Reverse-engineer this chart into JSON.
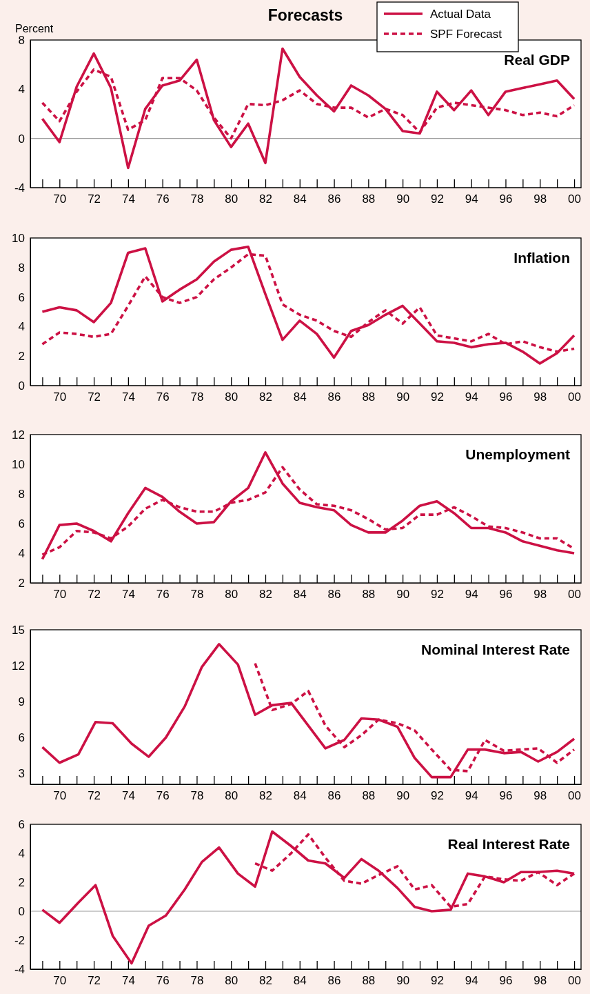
{
  "chart_data": [
    {
      "type": "line",
      "title": "Real GDP",
      "ylabel": "Percent",
      "annotations": [
        "Forecasts"
      ],
      "legend": "top right",
      "marker": "none",
      "grid": false,
      "x": [
        1969,
        1970,
        1971,
        1972,
        1973,
        1974,
        1975,
        1976,
        1977,
        1978,
        1979,
        1980,
        1981,
        1982,
        1983,
        1984,
        1985,
        1986,
        1987,
        1988,
        1989,
        1990,
        1991,
        1992,
        1993,
        1994,
        1995,
        1996,
        1997,
        1998,
        1999,
        2000
      ],
      "xlim": [
        1968.3,
        2000.4
      ],
      "xticks": [
        {
          "value": 1969,
          "label": null
        },
        {
          "value": 1970,
          "label": "70"
        },
        {
          "value": 1971,
          "label": null
        },
        {
          "value": 1972,
          "label": "72"
        },
        {
          "value": 1973,
          "label": null
        },
        {
          "value": 1974,
          "label": "74"
        },
        {
          "value": 1975,
          "label": null
        },
        {
          "value": 1976,
          "label": "76"
        },
        {
          "value": 1977,
          "label": null
        },
        {
          "value": 1978,
          "label": "78"
        },
        {
          "value": 1979,
          "label": null
        },
        {
          "value": 1980,
          "label": "80"
        },
        {
          "value": 1981,
          "label": null
        },
        {
          "value": 1982,
          "label": "82"
        },
        {
          "value": 1983,
          "label": null
        },
        {
          "value": 1984,
          "label": "84"
        },
        {
          "value": 1985,
          "label": null
        },
        {
          "value": 1986,
          "label": "86"
        },
        {
          "value": 1987,
          "label": null
        },
        {
          "value": 1988,
          "label": "88"
        },
        {
          "value": 1989,
          "label": null
        },
        {
          "value": 1990,
          "label": "90"
        },
        {
          "value": 1991,
          "label": null
        },
        {
          "value": 1992,
          "label": "92"
        },
        {
          "value": 1993,
          "label": null
        },
        {
          "value": 1994,
          "label": "94"
        },
        {
          "value": 1995,
          "label": null
        },
        {
          "value": 1996,
          "label": "96"
        },
        {
          "value": 1997,
          "label": null
        },
        {
          "value": 1998,
          "label": "98"
        },
        {
          "value": 1999,
          "label": null
        },
        {
          "value": 2000,
          "label": "00"
        }
      ],
      "ylim": [
        -4,
        8
      ],
      "yticks": [
        -4,
        0,
        4,
        8
      ],
      "ref_lines": [
        {
          "axis": "y",
          "value": 0,
          "color": "#999999"
        }
      ],
      "series": [
        {
          "name": "Actual Data",
          "color": "#cc1144",
          "line_style": "solid",
          "values": [
            1.6,
            -0.3,
            4.2,
            6.9,
            4.1,
            -2.4,
            2.4,
            4.3,
            4.7,
            6.4,
            1.5,
            -0.7,
            1.2,
            -2.0,
            7.3,
            5.0,
            3.5,
            2.2,
            4.3,
            3.5,
            2.4,
            0.6,
            0.4,
            3.8,
            2.3,
            3.9,
            1.9,
            3.8,
            4.1,
            4.4,
            4.7,
            3.2
          ]
        },
        {
          "name": "SPF Forecast",
          "color": "#cc1144",
          "line_style": "dashed",
          "values": [
            2.9,
            1.4,
            3.8,
            5.6,
            5.0,
            0.7,
            1.5,
            4.9,
            4.9,
            3.9,
            1.7,
            0.0,
            2.8,
            2.7,
            3.1,
            3.9,
            2.8,
            2.5,
            2.5,
            1.7,
            2.4,
            1.9,
            0.5,
            2.5,
            2.9,
            2.7,
            2.5,
            2.3,
            1.9,
            2.1,
            1.8,
            2.7
          ]
        }
      ]
    },
    {
      "type": "line",
      "title": "Inflation",
      "marker": "none",
      "grid": false,
      "x": [
        1969,
        1970,
        1971,
        1972,
        1973,
        1974,
        1975,
        1976,
        1977,
        1978,
        1979,
        1980,
        1981,
        1982,
        1983,
        1984,
        1985,
        1986,
        1987,
        1988,
        1989,
        1990,
        1991,
        1992,
        1993,
        1994,
        1995,
        1996,
        1997,
        1998,
        1999,
        2000
      ],
      "xlim": [
        1968.3,
        2000.4
      ],
      "xticks": [
        {
          "value": 1969,
          "label": null
        },
        {
          "value": 1970,
          "label": "70"
        },
        {
          "value": 1971,
          "label": null
        },
        {
          "value": 1972,
          "label": "72"
        },
        {
          "value": 1973,
          "label": null
        },
        {
          "value": 1974,
          "label": "74"
        },
        {
          "value": 1975,
          "label": null
        },
        {
          "value": 1976,
          "label": "76"
        },
        {
          "value": 1977,
          "label": null
        },
        {
          "value": 1978,
          "label": "78"
        },
        {
          "value": 1979,
          "label": null
        },
        {
          "value": 1980,
          "label": "80"
        },
        {
          "value": 1981,
          "label": null
        },
        {
          "value": 1982,
          "label": "82"
        },
        {
          "value": 1983,
          "label": null
        },
        {
          "value": 1984,
          "label": "84"
        },
        {
          "value": 1985,
          "label": null
        },
        {
          "value": 1986,
          "label": "86"
        },
        {
          "value": 1987,
          "label": null
        },
        {
          "value": 1988,
          "label": "88"
        },
        {
          "value": 1989,
          "label": null
        },
        {
          "value": 1990,
          "label": "90"
        },
        {
          "value": 1991,
          "label": null
        },
        {
          "value": 1992,
          "label": "92"
        },
        {
          "value": 1993,
          "label": null
        },
        {
          "value": 1994,
          "label": "94"
        },
        {
          "value": 1995,
          "label": null
        },
        {
          "value": 1996,
          "label": "96"
        },
        {
          "value": 1997,
          "label": null
        },
        {
          "value": 1998,
          "label": "98"
        },
        {
          "value": 1999,
          "label": null
        },
        {
          "value": 2000,
          "label": "00"
        }
      ],
      "ylim": [
        0,
        10
      ],
      "yticks": [
        0,
        2,
        4,
        6,
        8,
        10
      ],
      "series": [
        {
          "color": "#cc1144",
          "line_style": "solid",
          "values": [
            5.0,
            5.3,
            5.1,
            4.3,
            5.6,
            9.0,
            9.3,
            5.7,
            6.5,
            7.2,
            8.4,
            9.2,
            9.4,
            6.2,
            3.1,
            4.4,
            3.5,
            1.9,
            3.7,
            4.1,
            4.8,
            5.4,
            4.2,
            3.0,
            2.9,
            2.6,
            2.8,
            2.9,
            2.3,
            1.5,
            2.2,
            3.4
          ]
        },
        {
          "color": "#cc1144",
          "line_style": "dashed",
          "values": [
            2.8,
            3.6,
            3.5,
            3.3,
            3.5,
            5.4,
            7.4,
            6.0,
            5.6,
            6.0,
            7.2,
            8.0,
            8.9,
            8.8,
            5.5,
            4.8,
            4.4,
            3.7,
            3.3,
            4.3,
            5.1,
            4.2,
            5.3,
            3.4,
            3.2,
            3.0,
            3.5,
            2.8,
            3.0,
            2.6,
            2.3,
            2.5
          ]
        }
      ]
    },
    {
      "type": "line",
      "title": "Unemployment",
      "marker": "none",
      "grid": false,
      "x": [
        1969,
        1970,
        1971,
        1972,
        1973,
        1974,
        1975,
        1976,
        1977,
        1978,
        1979,
        1980,
        1981,
        1982,
        1983,
        1984,
        1985,
        1986,
        1987,
        1988,
        1989,
        1990,
        1991,
        1992,
        1993,
        1994,
        1995,
        1996,
        1997,
        1998,
        1999,
        2000
      ],
      "xlim": [
        1968.3,
        2000.4
      ],
      "xticks": [
        {
          "value": 1969,
          "label": null
        },
        {
          "value": 1970,
          "label": "70"
        },
        {
          "value": 1971,
          "label": null
        },
        {
          "value": 1972,
          "label": "72"
        },
        {
          "value": 1973,
          "label": null
        },
        {
          "value": 1974,
          "label": "74"
        },
        {
          "value": 1975,
          "label": null
        },
        {
          "value": 1976,
          "label": "76"
        },
        {
          "value": 1977,
          "label": null
        },
        {
          "value": 1978,
          "label": "78"
        },
        {
          "value": 1979,
          "label": null
        },
        {
          "value": 1980,
          "label": "80"
        },
        {
          "value": 1981,
          "label": null
        },
        {
          "value": 1982,
          "label": "82"
        },
        {
          "value": 1983,
          "label": null
        },
        {
          "value": 1984,
          "label": "84"
        },
        {
          "value": 1985,
          "label": null
        },
        {
          "value": 1986,
          "label": "86"
        },
        {
          "value": 1987,
          "label": null
        },
        {
          "value": 1988,
          "label": "88"
        },
        {
          "value": 1989,
          "label": null
        },
        {
          "value": 1990,
          "label": "90"
        },
        {
          "value": 1991,
          "label": null
        },
        {
          "value": 1992,
          "label": "92"
        },
        {
          "value": 1993,
          "label": null
        },
        {
          "value": 1994,
          "label": "94"
        },
        {
          "value": 1995,
          "label": null
        },
        {
          "value": 1996,
          "label": "96"
        },
        {
          "value": 1997,
          "label": null
        },
        {
          "value": 1998,
          "label": "98"
        },
        {
          "value": 1999,
          "label": null
        },
        {
          "value": 2000,
          "label": "00"
        }
      ],
      "ylim": [
        2,
        12
      ],
      "yticks": [
        2,
        4,
        6,
        8,
        10,
        12
      ],
      "series": [
        {
          "color": "#cc1144",
          "line_style": "solid",
          "values": [
            3.6,
            5.9,
            6.0,
            5.5,
            4.8,
            6.7,
            8.4,
            7.8,
            6.8,
            6.0,
            6.1,
            7.5,
            8.4,
            10.8,
            8.7,
            7.4,
            7.1,
            6.9,
            5.9,
            5.4,
            5.4,
            6.2,
            7.2,
            7.5,
            6.7,
            5.7,
            5.7,
            5.4,
            4.8,
            4.5,
            4.2,
            4.0
          ]
        },
        {
          "color": "#cc1144",
          "line_style": "dashed",
          "values": [
            3.9,
            4.4,
            5.5,
            5.4,
            5.0,
            5.8,
            7.0,
            7.6,
            7.1,
            6.8,
            6.8,
            7.4,
            7.6,
            8.1,
            9.8,
            8.3,
            7.3,
            7.2,
            6.9,
            6.3,
            5.6,
            5.7,
            6.6,
            6.6,
            7.1,
            6.5,
            5.8,
            5.7,
            5.4,
            5.0,
            5.0,
            4.3
          ]
        }
      ]
    },
    {
      "type": "line",
      "title": "Nominal Interest Rate",
      "marker": "none",
      "grid": false,
      "xlim": [
        1968.3,
        2000.4
      ],
      "xticks": [
        {
          "value": 1969,
          "label": null
        },
        {
          "value": 1970,
          "label": "70"
        },
        {
          "value": 1971,
          "label": null
        },
        {
          "value": 1972,
          "label": "72"
        },
        {
          "value": 1973,
          "label": null
        },
        {
          "value": 1974,
          "label": "74"
        },
        {
          "value": 1975,
          "label": null
        },
        {
          "value": 1976,
          "label": "76"
        },
        {
          "value": 1977,
          "label": null
        },
        {
          "value": 1978,
          "label": "78"
        },
        {
          "value": 1979,
          "label": null
        },
        {
          "value": 1980,
          "label": "80"
        },
        {
          "value": 1981,
          "label": null
        },
        {
          "value": 1982,
          "label": "82"
        },
        {
          "value": 1983,
          "label": null
        },
        {
          "value": 1984,
          "label": "84"
        },
        {
          "value": 1985,
          "label": null
        },
        {
          "value": 1986,
          "label": "86"
        },
        {
          "value": 1987,
          "label": null
        },
        {
          "value": 1988,
          "label": "88"
        },
        {
          "value": 1989,
          "label": null
        },
        {
          "value": 1990,
          "label": "90"
        },
        {
          "value": 1991,
          "label": null
        },
        {
          "value": 1992,
          "label": "92"
        },
        {
          "value": 1993,
          "label": null
        },
        {
          "value": 1994,
          "label": "94"
        },
        {
          "value": 1995,
          "label": null
        },
        {
          "value": 1996,
          "label": "96"
        },
        {
          "value": 1997,
          "label": null
        },
        {
          "value": 1998,
          "label": "98"
        },
        {
          "value": 1999,
          "label": null
        },
        {
          "value": 2000,
          "label": "00"
        }
      ],
      "ylim": [
        2.1,
        15
      ],
      "yticks": [
        3,
        6,
        9,
        12,
        15
      ],
      "series": [
        {
          "color": "#cc1144",
          "line_style": "solid",
          "x": [
            1969.0,
            1970.0,
            1971.1,
            1972.1,
            1973.1,
            1974.2,
            1975.2,
            1976.2,
            1977.3,
            1978.3,
            1979.3,
            1980.4,
            1981.4,
            1982.4,
            1983.5,
            1984.5,
            1985.5,
            1986.6,
            1987.6,
            1988.6,
            1989.7,
            1990.7,
            1991.7,
            1992.8,
            1993.8,
            1994.8,
            1995.9,
            1996.9,
            1997.9,
            1999.0,
            2000.0
          ],
          "values": [
            5.2,
            3.9,
            4.6,
            7.3,
            7.2,
            5.5,
            4.4,
            6.0,
            8.6,
            11.9,
            13.8,
            12.1,
            7.9,
            8.7,
            8.9,
            7.0,
            5.1,
            5.8,
            7.6,
            7.5,
            6.9,
            4.3,
            2.7,
            2.7,
            5.0,
            5.0,
            4.7,
            4.8,
            4.0,
            4.8,
            5.9
          ]
        },
        {
          "color": "#cc1144",
          "line_style": "dashed",
          "x": [
            1981.4,
            1982.4,
            1983.5,
            1984.5,
            1985.5,
            1986.6,
            1987.6,
            1988.6,
            1989.7,
            1990.7,
            1991.7,
            1992.8,
            1993.8,
            1994.8,
            1995.9,
            1996.9,
            1997.9,
            1999.0,
            2000.0
          ],
          "values": [
            12.2,
            8.3,
            8.8,
            9.9,
            7.0,
            5.2,
            6.2,
            7.5,
            7.2,
            6.6,
            5.0,
            3.3,
            3.2,
            5.8,
            4.9,
            5.0,
            5.1,
            3.9,
            5.0
          ]
        }
      ]
    },
    {
      "type": "line",
      "title": "Real Interest Rate",
      "marker": "none",
      "grid": false,
      "xlim": [
        1968.3,
        2000.4
      ],
      "xticks": [
        {
          "value": 1969,
          "label": null
        },
        {
          "value": 1970,
          "label": "70"
        },
        {
          "value": 1971,
          "label": null
        },
        {
          "value": 1972,
          "label": "72"
        },
        {
          "value": 1973,
          "label": null
        },
        {
          "value": 1974,
          "label": "74"
        },
        {
          "value": 1975,
          "label": null
        },
        {
          "value": 1976,
          "label": "76"
        },
        {
          "value": 1977,
          "label": null
        },
        {
          "value": 1978,
          "label": "78"
        },
        {
          "value": 1979,
          "label": null
        },
        {
          "value": 1980,
          "label": "80"
        },
        {
          "value": 1981,
          "label": null
        },
        {
          "value": 1982,
          "label": "82"
        },
        {
          "value": 1983,
          "label": null
        },
        {
          "value": 1984,
          "label": "84"
        },
        {
          "value": 1985,
          "label": null
        },
        {
          "value": 1986,
          "label": "86"
        },
        {
          "value": 1987,
          "label": null
        },
        {
          "value": 1988,
          "label": "88"
        },
        {
          "value": 1989,
          "label": null
        },
        {
          "value": 1990,
          "label": "90"
        },
        {
          "value": 1991,
          "label": null
        },
        {
          "value": 1992,
          "label": "92"
        },
        {
          "value": 1993,
          "label": null
        },
        {
          "value": 1994,
          "label": "94"
        },
        {
          "value": 1995,
          "label": null
        },
        {
          "value": 1996,
          "label": "96"
        },
        {
          "value": 1997,
          "label": null
        },
        {
          "value": 1998,
          "label": "98"
        },
        {
          "value": 1999,
          "label": null
        },
        {
          "value": 2000,
          "label": "00"
        }
      ],
      "ylim": [
        -4,
        6
      ],
      "yticks": [
        -4,
        -2,
        0,
        2,
        4,
        6
      ],
      "ref_lines": [
        {
          "axis": "y",
          "value": 0,
          "color": "#999999"
        }
      ],
      "series": [
        {
          "color": "#cc1144",
          "line_style": "solid",
          "x": [
            1969.0,
            1970.0,
            1971.1,
            1972.1,
            1973.1,
            1974.2,
            1975.2,
            1976.2,
            1977.3,
            1978.3,
            1979.3,
            1980.4,
            1981.4,
            1982.4,
            1983.5,
            1984.5,
            1985.5,
            1986.6,
            1987.6,
            1988.6,
            1989.7,
            1990.7,
            1991.7,
            1992.8,
            1993.8,
            1994.8,
            1995.9,
            1996.9,
            1997.9,
            1999.0,
            2000.0
          ],
          "values": [
            0.1,
            -0.8,
            0.6,
            1.8,
            -1.7,
            -3.6,
            -1.0,
            -0.3,
            1.5,
            3.4,
            4.4,
            2.6,
            1.7,
            5.5,
            4.5,
            3.5,
            3.3,
            2.3,
            3.6,
            2.8,
            1.6,
            0.3,
            0.0,
            0.1,
            2.6,
            2.4,
            2.0,
            2.7,
            2.7,
            2.8,
            2.6
          ]
        },
        {
          "color": "#cc1144",
          "line_style": "dashed",
          "x": [
            1981.4,
            1982.4,
            1983.5,
            1984.5,
            1985.5,
            1986.6,
            1987.6,
            1988.6,
            1989.7,
            1990.7,
            1991.7,
            1992.8,
            1993.8,
            1994.8,
            1995.9,
            1996.9,
            1997.9,
            1999.0,
            2000.0
          ],
          "values": [
            3.3,
            2.8,
            4.0,
            5.3,
            3.7,
            2.1,
            1.9,
            2.5,
            3.1,
            1.5,
            1.8,
            0.3,
            0.5,
            2.4,
            2.2,
            2.1,
            2.7,
            1.8,
            2.6
          ]
        }
      ]
    }
  ]
}
